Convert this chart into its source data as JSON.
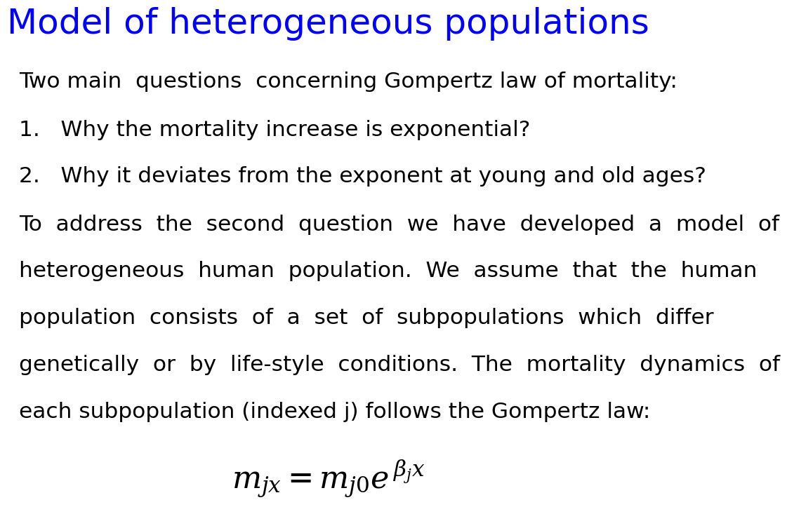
{
  "title": "Model of heterogeneous populations",
  "title_color": "#0000FF",
  "title_fontsize": 36,
  "background_color": "#FFFFFF",
  "text_color": "#000000",
  "body_fontsize": 22.5,
  "line1": "Two main  questions  concerning Gompertz law of mortality:",
  "item1": "1.   Why the mortality increase is exponential?",
  "item2": "2.   Why it deviates from the exponent at young and old ages?",
  "para_lines": [
    "To  address  the  second  question  we  have  developed  a  model  of",
    "heterogeneous  human  population.  We  assume  that  the  human",
    "population  consists  of  a  set  of  subpopulations  which  differ",
    "genetically  or  by  life-style  conditions.  The  mortality  dynamics  of",
    "each subpopulation (indexed j) follows the Gompertz law:"
  ],
  "formula": "$m_{jx} = m_{j0}e^{\\, \\beta_j x}$",
  "formula_fontsize": 32
}
